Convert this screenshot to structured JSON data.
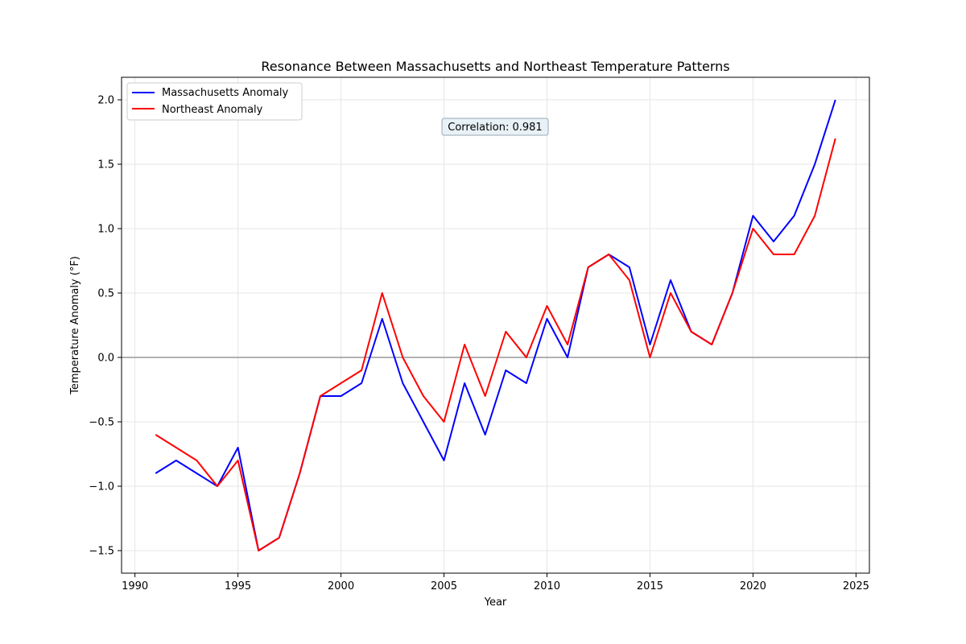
{
  "chart_data": {
    "type": "line",
    "title": "Resonance Between Massachusetts and Northeast Temperature Patterns",
    "xlabel": "Year",
    "ylabel": "Temperature Anomaly (°F)",
    "xlim": [
      1989.35,
      2025.65
    ],
    "ylim": [
      -1.675,
      2.175
    ],
    "xticks": [
      1990,
      1995,
      2000,
      2005,
      2010,
      2015,
      2020,
      2025
    ],
    "yticks": [
      -1.5,
      -1.0,
      -0.5,
      0.0,
      0.5,
      1.0,
      1.5,
      2.0
    ],
    "ytick_labels": [
      "−1.5",
      "−1.0",
      "−0.5",
      "0.0",
      "0.5",
      "1.0",
      "1.5",
      "2.0"
    ],
    "grid": true,
    "legend_position": "top-left",
    "reference_line": {
      "y": 0.0,
      "color": "#999999"
    },
    "annotation": "Correlation: 0.981",
    "x": [
      1991,
      1992,
      1993,
      1994,
      1995,
      1996,
      1997,
      1998,
      1999,
      2000,
      2001,
      2002,
      2003,
      2004,
      2005,
      2006,
      2007,
      2008,
      2009,
      2010,
      2011,
      2012,
      2013,
      2014,
      2015,
      2016,
      2017,
      2018,
      2019,
      2020,
      2021,
      2022,
      2023,
      2024
    ],
    "series": [
      {
        "name": "Massachusetts Anomaly",
        "color": "#0000ff",
        "values": [
          -0.9,
          -0.8,
          -0.9,
          -1.0,
          -0.7,
          -1.5,
          -1.4,
          -0.9,
          -0.3,
          -0.3,
          -0.2,
          0.3,
          -0.2,
          -0.5,
          -0.8,
          -0.2,
          -0.6,
          -0.1,
          -0.2,
          0.3,
          0.0,
          0.7,
          0.8,
          0.7,
          0.1,
          0.6,
          0.2,
          0.1,
          0.5,
          1.1,
          0.9,
          1.1,
          1.5,
          2.0
        ]
      },
      {
        "name": "Northeast Anomaly",
        "color": "#ff0000",
        "values": [
          -0.6,
          -0.7,
          -0.8,
          -1.0,
          -0.8,
          -1.5,
          -1.4,
          -0.9,
          -0.3,
          -0.2,
          -0.1,
          0.5,
          0.0,
          -0.3,
          -0.5,
          0.1,
          -0.3,
          0.2,
          0.0,
          0.4,
          0.1,
          0.7,
          0.8,
          0.6,
          0.0,
          0.5,
          0.2,
          0.1,
          0.5,
          1.0,
          0.8,
          0.8,
          1.1,
          1.7
        ]
      }
    ]
  }
}
